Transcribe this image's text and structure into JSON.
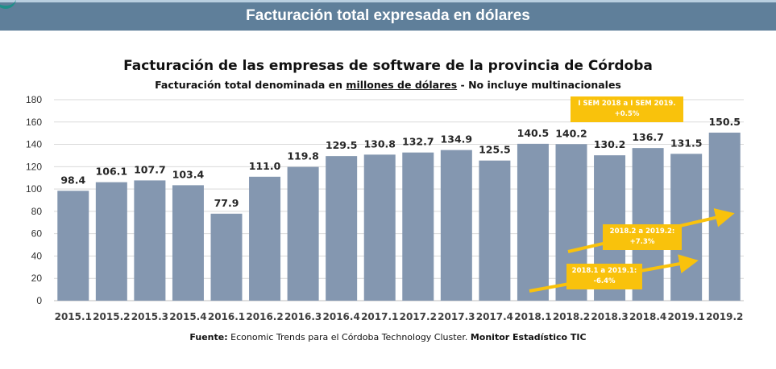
{
  "header": {
    "banner_title": "Facturación total expresada en dólares"
  },
  "colors": {
    "banner": "#5f7f9a",
    "bar": "#8497b0",
    "annotation": "#f9c20c",
    "arrow": "#f9c20c"
  },
  "chart_data": {
    "type": "bar",
    "title": "Facturación de las empresas de software de la provincia de Córdoba",
    "subtitle_prefix": "Facturación total denominada en ",
    "subtitle_underlined": "millones de dólares",
    "subtitle_suffix": " - No incluye multinacionales",
    "categories": [
      "2015.1",
      "2015.2",
      "2015.3",
      "2015.4",
      "2016.1",
      "2016.2",
      "2016.3",
      "2016.4",
      "2017.1",
      "2017.2",
      "2017.3",
      "2017.4",
      "2018.1",
      "2018.2",
      "2018.3",
      "2018.4",
      "2019.1",
      "2019.2"
    ],
    "values": [
      98.4,
      106.1,
      107.7,
      103.4,
      77.9,
      111.0,
      119.8,
      129.5,
      130.8,
      132.7,
      134.9,
      125.5,
      140.5,
      140.2,
      130.2,
      136.7,
      131.5,
      150.5
    ],
    "value_labels": [
      "98.4",
      "106.1",
      "107.7",
      "103.4",
      "77.9",
      "111.0",
      "119.8",
      "129.5",
      "130.8",
      "132.7",
      "134.9",
      "125.5",
      "140.5",
      "140.2",
      "130.2",
      "136.7",
      "131.5",
      "150.5"
    ],
    "ylim": [
      0,
      180
    ],
    "yticks": [
      "0",
      "20",
      "40",
      "60",
      "80",
      "100",
      "120",
      "140",
      "160",
      "180"
    ],
    "grid": true,
    "annotations": [
      {
        "line1": "I SEM 2018 a I SEM 2019.",
        "line2": "+0.5%"
      },
      {
        "line1": "2018.2 a 2019.2:",
        "line2": "+7.3%"
      },
      {
        "line1": "2018.1 a 2019.1:",
        "line2": "-6.4%"
      }
    ]
  },
  "source": {
    "label": "Fuente:",
    "text": " Economic Trends para el Córdoba Technology Cluster. ",
    "emphasis": "Monitor Estadístico TIC"
  }
}
